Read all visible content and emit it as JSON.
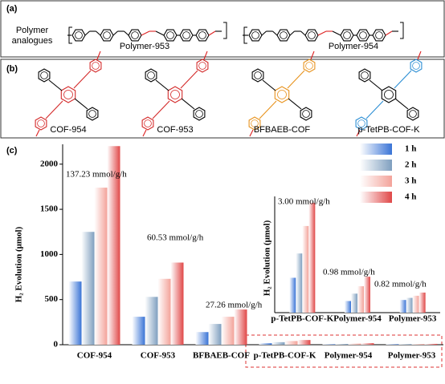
{
  "panel_a": {
    "label": "(a)",
    "caption": "Polymer analogues",
    "structures": [
      "Polymer-953",
      "Polymer-954"
    ]
  },
  "panel_b": {
    "label": "(b)",
    "structures": [
      "COF-954",
      "COF-953",
      "BFBAEB-COF",
      "p-TetPB-COF-K"
    ]
  },
  "chart_data": {
    "type": "bar",
    "label": "(c)",
    "ylabel": "H₂ Evolution (μmol)",
    "categories": [
      "COF-954",
      "COF-953",
      "BFBAEB-COF",
      "p-TetPB-COF-K",
      "Polymer-954",
      "Polymer-953"
    ],
    "series": [
      {
        "name": "1 h",
        "color": "#3a74d6",
        "values": [
          700,
          310,
          140,
          16.5,
          5.5,
          6
        ]
      },
      {
        "name": "2 h",
        "color": "#7f9fbf",
        "values": [
          1250,
          530,
          230,
          28,
          9,
          7
        ]
      },
      {
        "name": "3 h",
        "color": "#f3a39a",
        "values": [
          1740,
          730,
          310,
          41,
          12.5,
          8
        ]
      },
      {
        "name": "4 h",
        "color": "#e04848",
        "values": [
          2200,
          910,
          390,
          52,
          17,
          9.5
        ]
      }
    ],
    "ylim": [
      0,
      2220
    ],
    "yticks": [
      0,
      500,
      1000,
      1500,
      2000
    ],
    "annotations": [
      "137.23 mmol/g/h",
      "60.53 mmol/g/h",
      "27.26 mmol/g/h",
      "3.00 mmol/g/h",
      "0.98 mmol/g/h",
      "0.82 mmol/g/h"
    ],
    "inset": {
      "ylim": [
        0,
        55
      ]
    }
  }
}
